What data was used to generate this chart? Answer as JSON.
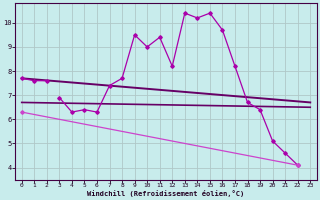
{
  "xlabel": "Windchill (Refroidissement éolien,°C)",
  "background_color": "#c8ecec",
  "grid_color": "#b0c8c8",
  "xlim": [
    -0.5,
    23.5
  ],
  "ylim": [
    3.5,
    10.8
  ],
  "yticks": [
    4,
    5,
    6,
    7,
    8,
    9,
    10
  ],
  "xticks": [
    0,
    1,
    2,
    3,
    4,
    5,
    6,
    7,
    8,
    9,
    10,
    11,
    12,
    13,
    14,
    15,
    16,
    17,
    18,
    19,
    20,
    21,
    22,
    23
  ],
  "line1_x": [
    0,
    1,
    2
  ],
  "line1_y": [
    7.7,
    7.6,
    7.6
  ],
  "line2_x": [
    3,
    4,
    5,
    6,
    7,
    8,
    9,
    10,
    11,
    12,
    13,
    14,
    15,
    16,
    17,
    18,
    19,
    20,
    21,
    22
  ],
  "line2_y": [
    6.9,
    6.3,
    6.4,
    6.3,
    7.4,
    7.7,
    9.5,
    9.0,
    9.4,
    8.2,
    10.4,
    10.2,
    10.4,
    9.7,
    8.2,
    6.7,
    6.4,
    5.1,
    4.6,
    4.1
  ],
  "line3_x": [
    0,
    23
  ],
  "line3_y": [
    7.7,
    6.7
  ],
  "line4_x": [
    0,
    23
  ],
  "line4_y": [
    6.7,
    6.5
  ],
  "line5_x": [
    0,
    22
  ],
  "line5_y": [
    6.3,
    4.1
  ],
  "color_main": "#aa00aa",
  "color_dark": "#660066",
  "color_diag": "#cc44cc"
}
